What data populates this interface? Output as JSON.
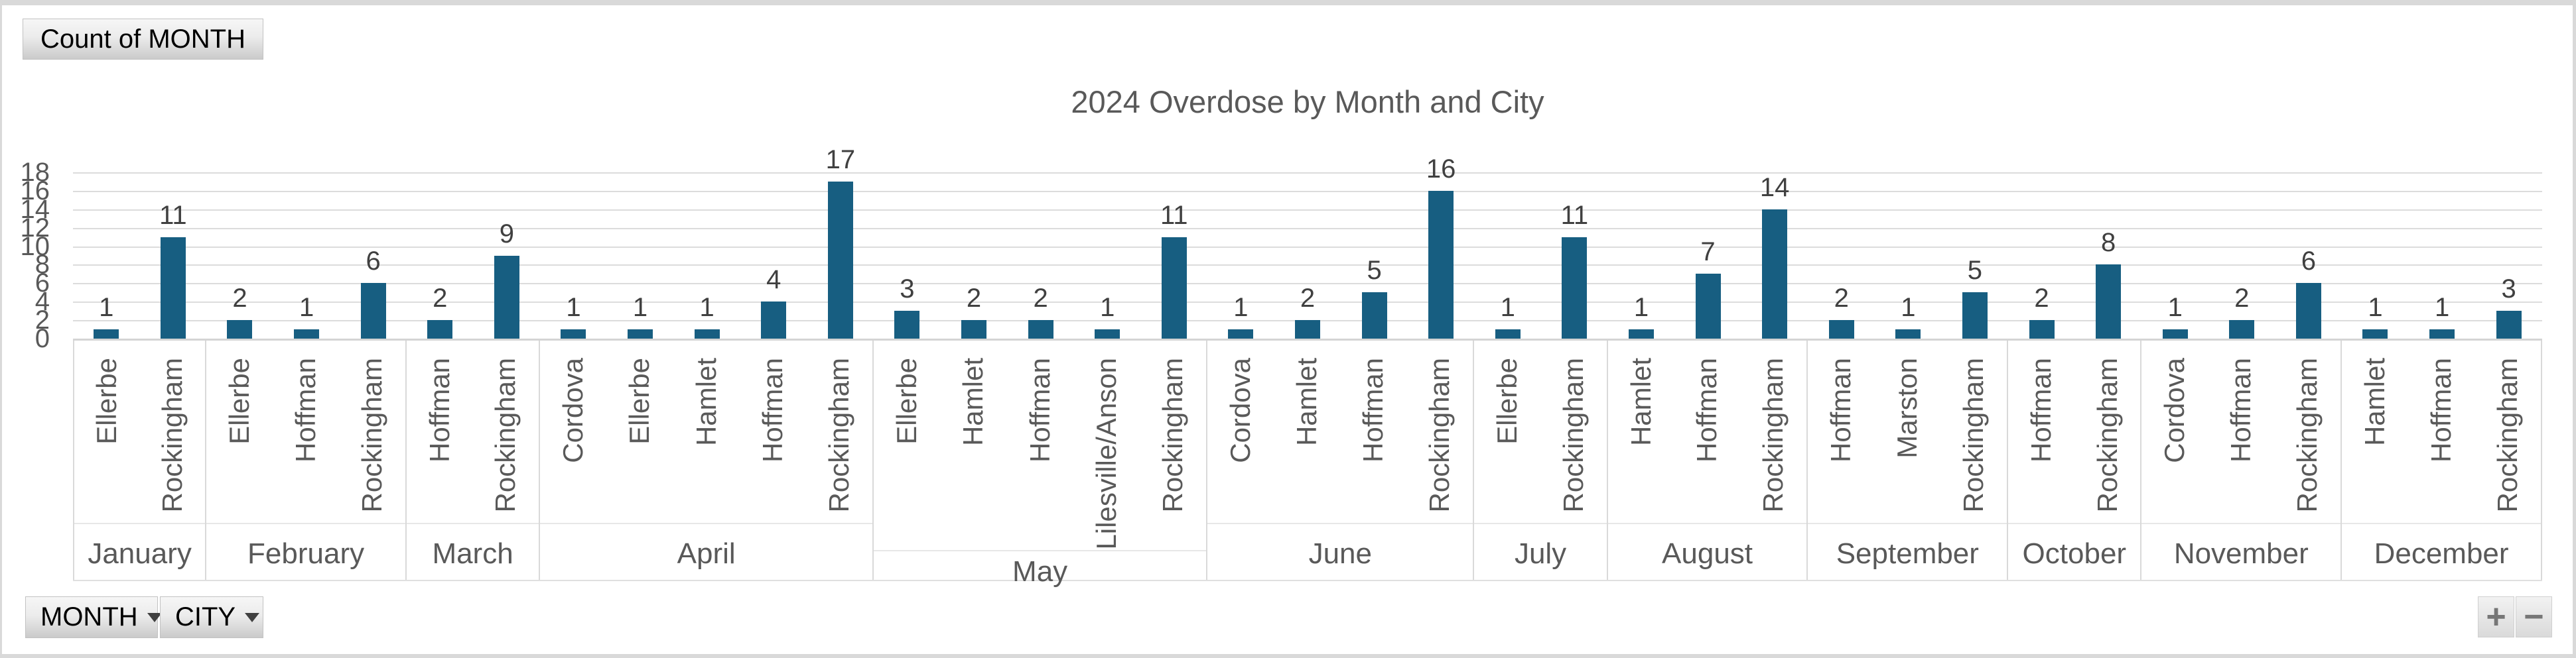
{
  "pivot_buttons": {
    "value_field_label": "Count of MONTH",
    "axis_field_buttons": [
      {
        "label": "MONTH"
      },
      {
        "label": "CITY"
      }
    ],
    "expand_button": "+",
    "collapse_button": "−"
  },
  "chart_data": {
    "type": "bar",
    "title": "2024 Overdose by Month and City",
    "xlabel": "",
    "ylabel": "",
    "ylim": [
      0,
      18
    ],
    "ytick_step": 2,
    "grid": true,
    "legend": "none",
    "bar_color": "#175E81",
    "grid_color": "#DCDCDC",
    "axis_text_color": "#595959",
    "data_label_color": "#404040",
    "category_levels": [
      "CITY",
      "MONTH"
    ],
    "groups": [
      {
        "month": "January",
        "categories": [
          "Ellerbe",
          "Rockingham"
        ],
        "values": [
          1,
          11
        ]
      },
      {
        "month": "February",
        "categories": [
          "Ellerbe",
          "Hoffman",
          "Rockingham"
        ],
        "values": [
          2,
          1,
          6
        ]
      },
      {
        "month": "March",
        "categories": [
          "Hoffman",
          "Rockingham"
        ],
        "values": [
          2,
          9
        ]
      },
      {
        "month": "April",
        "categories": [
          "Cordova",
          "Ellerbe",
          "Hamlet",
          "Hoffman",
          "Rockingham"
        ],
        "values": [
          1,
          1,
          1,
          4,
          17
        ]
      },
      {
        "month": "May",
        "categories": [
          "Ellerbe",
          "Hamlet",
          "Hoffman",
          "Lilesville/Anson",
          "Rockingham"
        ],
        "values": [
          3,
          2,
          2,
          1,
          11
        ]
      },
      {
        "month": "June",
        "categories": [
          "Cordova",
          "Hamlet",
          "Hoffman",
          "Rockingham"
        ],
        "values": [
          1,
          2,
          5,
          16
        ]
      },
      {
        "month": "July",
        "categories": [
          "Ellerbe",
          "Rockingham"
        ],
        "values": [
          1,
          11
        ]
      },
      {
        "month": "August",
        "categories": [
          "Hamlet",
          "Hoffman",
          "Rockingham"
        ],
        "values": [
          1,
          7,
          14
        ]
      },
      {
        "month": "September",
        "categories": [
          "Hoffman",
          "Marston",
          "Rockingham"
        ],
        "values": [
          2,
          1,
          5
        ]
      },
      {
        "month": "October",
        "categories": [
          "Hoffman",
          "Rockingham"
        ],
        "values": [
          2,
          8
        ]
      },
      {
        "month": "November",
        "categories": [
          "Cordova",
          "Hoffman",
          "Rockingham"
        ],
        "values": [
          1,
          2,
          6
        ]
      },
      {
        "month": "December",
        "categories": [
          "Hamlet",
          "Hoffman",
          "Rockingham"
        ],
        "values": [
          1,
          1,
          3
        ]
      }
    ]
  }
}
